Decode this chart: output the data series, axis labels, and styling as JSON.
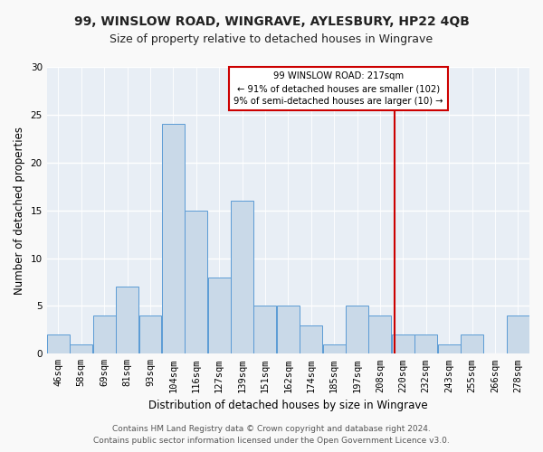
{
  "title": "99, WINSLOW ROAD, WINGRAVE, AYLESBURY, HP22 4QB",
  "subtitle": "Size of property relative to detached houses in Wingrave",
  "xlabel": "Distribution of detached houses by size in Wingrave",
  "ylabel": "Number of detached properties",
  "categories": [
    "46sqm",
    "58sqm",
    "69sqm",
    "81sqm",
    "93sqm",
    "104sqm",
    "116sqm",
    "127sqm",
    "139sqm",
    "151sqm",
    "162sqm",
    "174sqm",
    "185sqm",
    "197sqm",
    "208sqm",
    "220sqm",
    "232sqm",
    "243sqm",
    "255sqm",
    "266sqm",
    "278sqm"
  ],
  "values": [
    2,
    1,
    4,
    7,
    4,
    24,
    15,
    8,
    16,
    5,
    5,
    3,
    1,
    5,
    4,
    2,
    2,
    1,
    2,
    0,
    4
  ],
  "bar_color": "#c9d9e8",
  "bar_edge_color": "#5b9bd5",
  "background_color": "#e8eef5",
  "grid_color": "#ffffff",
  "property_label": "99 WINSLOW ROAD: 217sqm",
  "annotation_line1": "← 91% of detached houses are smaller (102)",
  "annotation_line2": "9% of semi-detached houses are larger (10) →",
  "vline_color": "#cc0000",
  "annotation_box_color": "#cc0000",
  "ylim": [
    0,
    30
  ],
  "yticks": [
    0,
    5,
    10,
    15,
    20,
    25,
    30
  ],
  "footer_line1": "Contains HM Land Registry data © Crown copyright and database right 2024.",
  "footer_line2": "Contains public sector information licensed under the Open Government Licence v3.0.",
  "vline_x_index": 14.62,
  "title_fontsize": 10,
  "subtitle_fontsize": 9,
  "axis_label_fontsize": 8.5,
  "tick_fontsize": 7.5,
  "footer_fontsize": 6.5,
  "fig_facecolor": "#f9f9f9"
}
